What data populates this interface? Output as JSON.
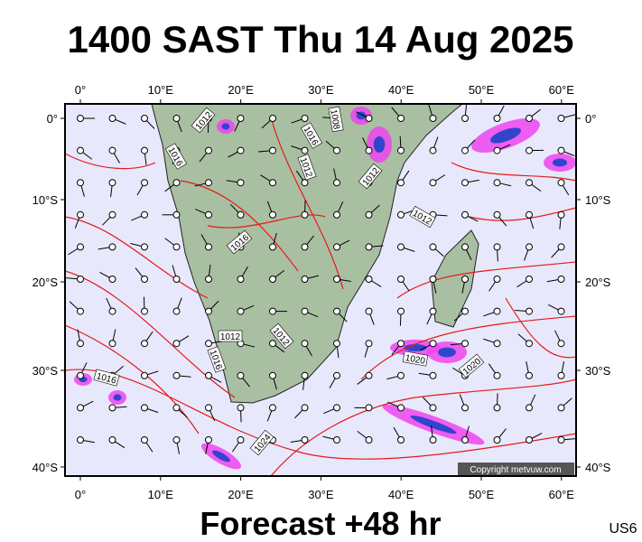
{
  "header": {
    "title": "1400 SAST Thu 14 Aug 2025"
  },
  "map": {
    "lon_labels": [
      "0°",
      "10°E",
      "20°E",
      "30°E",
      "40°E",
      "50°E",
      "60°E"
    ],
    "lat_labels": [
      "0°",
      "10°S",
      "20°S",
      "30°S",
      "40°S"
    ],
    "isobar_labels": [
      "1016",
      "1012",
      "1016",
      "1012",
      "1008",
      "1012",
      "1012",
      "1016",
      "1012",
      "1012",
      "1016",
      "1016",
      "1020",
      "1020",
      "1024",
      "1020"
    ],
    "copyright": "Copyright metvuw.com"
  },
  "footer": {
    "forecast": "Forecast +48 hr",
    "code": "US6"
  }
}
